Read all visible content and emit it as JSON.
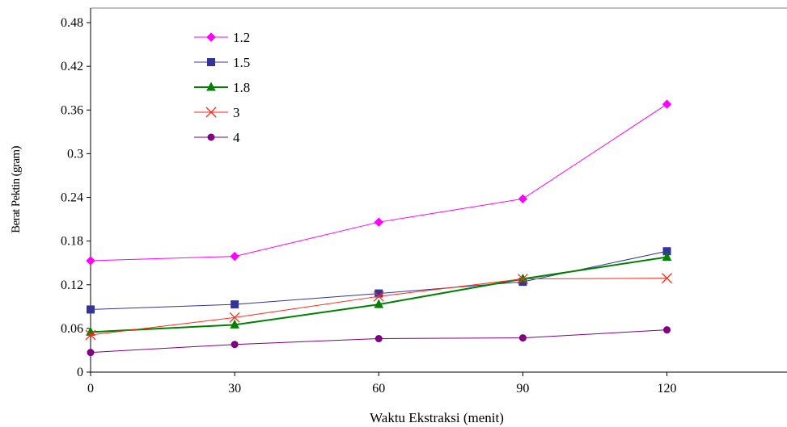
{
  "chart_data": {
    "type": "line",
    "title": "",
    "xlabel": "Waktu Ekstraksi (menit)",
    "ylabel": "Berat Pektin (gram)",
    "x": [
      0,
      30,
      60,
      90,
      120
    ],
    "x_ticks": [
      "0",
      "30",
      "60",
      "90",
      "120"
    ],
    "xlim": [
      0,
      145
    ],
    "y_ticks": [
      "0",
      "0.06",
      "0.12",
      "0.18",
      "0.24",
      "0.3",
      "0.36",
      "0.42",
      "0.48"
    ],
    "ylim": [
      0,
      0.5
    ],
    "grid": false,
    "legend_position": "top-left",
    "series": [
      {
        "name": "1.2",
        "color": "#ff00ff",
        "marker": "diamond",
        "values": [
          0.153,
          0.159,
          0.206,
          0.238,
          0.368
        ]
      },
      {
        "name": "1.5",
        "color": "#33339a",
        "marker": "square",
        "values": [
          0.086,
          0.093,
          0.108,
          0.124,
          0.166
        ]
      },
      {
        "name": "1.8",
        "color": "#008000",
        "marker": "triangle",
        "values": [
          0.055,
          0.065,
          0.093,
          0.128,
          0.158
        ]
      },
      {
        "name": "3",
        "color": "#ff2a1a",
        "marker": "x",
        "values": [
          0.051,
          0.075,
          0.104,
          0.128,
          0.129
        ]
      },
      {
        "name": "4",
        "color": "#800080",
        "marker": "circle",
        "values": [
          0.027,
          0.038,
          0.046,
          0.047,
          0.058
        ]
      }
    ]
  }
}
